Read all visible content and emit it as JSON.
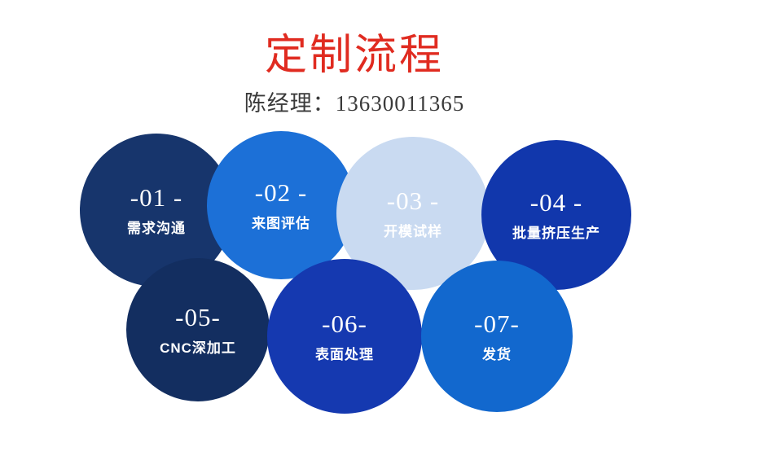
{
  "page": {
    "title": "定制流程",
    "title_color": "#e02b20",
    "subtitle": "陈经理：13630011365",
    "subtitle_color": "#3a3a3a",
    "background_color": "#ffffff"
  },
  "steps": [
    {
      "number": "-01 -",
      "label": "需求沟通",
      "circle_color": "#17356c",
      "text_color": "#ffffff"
    },
    {
      "number": "-02 -",
      "label": "来图评估",
      "circle_color": "#1c70d7",
      "text_color": "#ffffff"
    },
    {
      "number": "-03 -",
      "label": "开模试样",
      "circle_color": "#c9daf1",
      "text_color": "#ffffff"
    },
    {
      "number": "-04 -",
      "label": "批量挤压生产",
      "circle_color": "#1137ac",
      "text_color": "#ffffff"
    },
    {
      "number": "-05-",
      "label": "CNC深加工",
      "circle_color": "#132e60",
      "text_color": "#ffffff"
    },
    {
      "number": "-06-",
      "label": "表面处理",
      "circle_color": "#1539b0",
      "text_color": "#ffffff"
    },
    {
      "number": "-07-",
      "label": "发货",
      "circle_color": "#1268ce",
      "text_color": "#ffffff"
    }
  ]
}
